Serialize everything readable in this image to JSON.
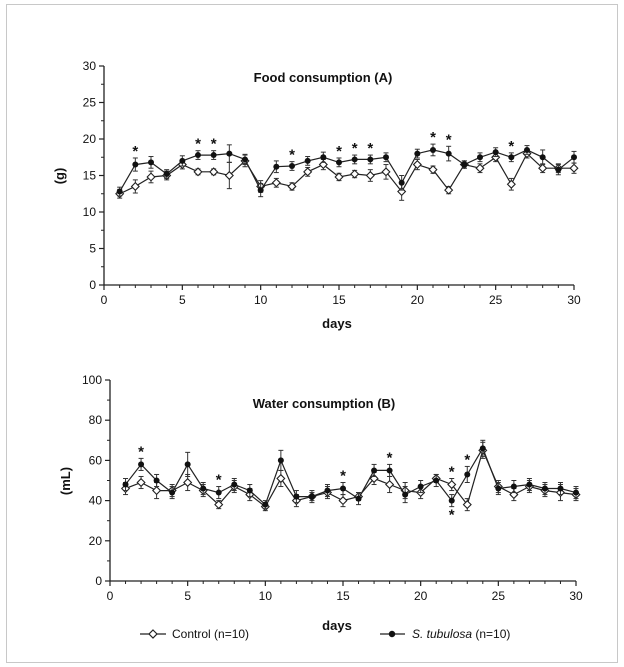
{
  "chart_data": [
    {
      "id": "A",
      "type": "line",
      "title": "Food consumption (A)",
      "xlabel": "days",
      "ylabel": "(g)",
      "xlim": [
        0,
        30
      ],
      "ylim": [
        0,
        30
      ],
      "xticks": [
        0,
        5,
        10,
        15,
        20,
        25,
        30
      ],
      "yticks": [
        0,
        5,
        10,
        15,
        20,
        25,
        30
      ],
      "x": [
        1,
        2,
        3,
        4,
        5,
        6,
        7,
        8,
        9,
        10,
        11,
        12,
        13,
        14,
        15,
        16,
        17,
        18,
        19,
        20,
        21,
        22,
        23,
        24,
        25,
        26,
        27,
        28,
        29,
        30
      ],
      "series": [
        {
          "name": "Control (n=10)",
          "marker": "diamond-open",
          "values": [
            12.5,
            13.5,
            14.8,
            15.0,
            16.5,
            15.5,
            15.5,
            15.0,
            17.0,
            13.5,
            14.0,
            13.5,
            15.5,
            16.5,
            14.8,
            15.2,
            15.0,
            15.5,
            12.8,
            16.5,
            15.8,
            13.0,
            16.5,
            16.0,
            17.5,
            13.8,
            18.0,
            16.0,
            16.0,
            16.0
          ],
          "errors": [
            0.6,
            0.9,
            0.8,
            0.6,
            0.6,
            0.4,
            0.4,
            1.8,
            0.8,
            0.8,
            0.6,
            0.5,
            0.6,
            0.7,
            0.5,
            0.5,
            0.8,
            1.0,
            1.2,
            0.7,
            0.5,
            0.5,
            0.5,
            0.6,
            0.6,
            0.8,
            0.6,
            0.6,
            0.6,
            0.7
          ]
        },
        {
          "name": "S. tubulosa (n=10)",
          "marker": "circle-filled",
          "values": [
            12.8,
            16.5,
            16.8,
            15.2,
            17.0,
            17.8,
            17.8,
            18.0,
            17.2,
            13.0,
            16.2,
            16.3,
            17.0,
            17.5,
            16.8,
            17.2,
            17.2,
            17.5,
            14.0,
            18.0,
            18.5,
            18.0,
            16.5,
            17.5,
            18.2,
            17.5,
            18.5,
            17.5,
            15.8,
            17.5
          ],
          "errors": [
            0.6,
            0.9,
            0.8,
            0.6,
            0.7,
            0.6,
            0.6,
            1.2,
            0.7,
            0.9,
            0.8,
            0.6,
            0.6,
            0.7,
            0.6,
            0.6,
            0.6,
            0.6,
            1.0,
            0.6,
            0.8,
            1.0,
            0.5,
            0.6,
            0.6,
            0.6,
            0.6,
            1.0,
            0.7,
            0.8
          ]
        }
      ],
      "significance_days": [
        2,
        6,
        7,
        12,
        15,
        16,
        17,
        21,
        22,
        26
      ],
      "significance_symbol": "*"
    },
    {
      "id": "B",
      "type": "line",
      "title": "Water consumption (B)",
      "xlabel": "days",
      "ylabel": "(mL)",
      "xlim": [
        0,
        30
      ],
      "ylim": [
        0,
        100
      ],
      "xticks": [
        0,
        5,
        10,
        15,
        20,
        25,
        30
      ],
      "yticks": [
        0,
        20,
        40,
        60,
        80,
        100
      ],
      "x": [
        1,
        2,
        3,
        4,
        5,
        6,
        7,
        8,
        9,
        10,
        11,
        12,
        13,
        14,
        15,
        16,
        17,
        18,
        19,
        20,
        21,
        22,
        23,
        24,
        25,
        26,
        27,
        28,
        29,
        30
      ],
      "series": [
        {
          "name": "Control (n=10)",
          "marker": "diamond-open",
          "values": [
            46,
            49,
            45,
            45,
            49,
            45,
            38,
            47,
            43,
            37,
            51,
            40,
            42,
            44,
            40,
            42,
            51,
            48,
            45,
            44,
            51,
            48,
            38,
            65,
            47,
            43,
            47,
            45,
            44,
            43
          ],
          "errors": [
            3,
            3,
            4,
            3,
            4,
            3,
            2,
            3,
            3,
            2,
            4,
            3,
            2,
            3,
            3,
            2,
            3,
            4,
            4,
            3,
            2,
            3,
            3,
            4,
            3,
            3,
            3,
            3,
            4,
            3
          ]
        },
        {
          "name": "S. tubulosa (n=10)",
          "marker": "circle-filled",
          "values": [
            48,
            58,
            50,
            44,
            58,
            46,
            44,
            48,
            45,
            38,
            60,
            42,
            42,
            45,
            46,
            41,
            55,
            55,
            43,
            47,
            50,
            40,
            53,
            66,
            46,
            47,
            48,
            46,
            46,
            44
          ],
          "errors": [
            3,
            3,
            3,
            3,
            6,
            3,
            3,
            3,
            3,
            2,
            5,
            3,
            3,
            3,
            3,
            3,
            3,
            3,
            4,
            3,
            3,
            3,
            4,
            4,
            3,
            3,
            3,
            3,
            3,
            3
          ]
        }
      ],
      "significance_days": [
        2,
        7,
        15,
        18,
        22,
        23
      ],
      "significance_below_days": [
        22
      ],
      "significance_symbol": "*"
    }
  ],
  "legend": {
    "placement": "bottom",
    "items": [
      {
        "label": "Control (n=10)",
        "marker": "diamond-open"
      },
      {
        "label": "S. tubulosa (n=10)",
        "marker": "circle-filled",
        "italic_part": "S. tubulosa"
      }
    ]
  }
}
